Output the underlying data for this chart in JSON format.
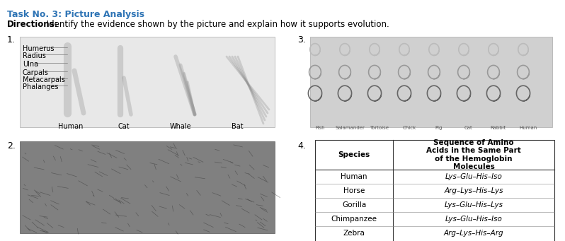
{
  "title": "Task No. 3: Picture Analysis",
  "title_color": "#2E74B5",
  "directions": "Directions: Identify the evidence shown by the picture and explain how it supports evolution.",
  "bg_color": "#ffffff",
  "section1_label": "1.",
  "section2_label": "2.",
  "section3_label": "3.",
  "section4_label": "4.",
  "bone_labels": [
    "Humerus",
    "Radius",
    "Ulna",
    "Carpals",
    "Metacarpals",
    "Phalanges"
  ],
  "animal_labels": [
    "Human",
    "Cat",
    "Whale",
    "Bat"
  ],
  "table_header_col1": "Species",
  "table_header_col2": "Sequence of Amino\nAcids in the Same Part\nof the Hemoglobin\nMolecules",
  "table_rows": [
    [
      "Human",
      "Lys–Glu–His–Iso"
    ],
    [
      "Horse",
      "Arg–Lys–His–Lys"
    ],
    [
      "Gorilla",
      "Lys–Glu–His–Lys"
    ],
    [
      "Chimpanzee",
      "Lys–Glu–His–Iso"
    ],
    [
      "Zebra",
      "Arg–Lys–His–Arg"
    ]
  ],
  "img1_placeholder_color": "#e8e8e8",
  "img2_placeholder_color": "#808080",
  "img3_placeholder_color": "#d0d0d0",
  "title_fontsize": 9,
  "directions_fontsize": 8.5,
  "label_fontsize": 9,
  "bone_fontsize": 7,
  "animal_fontsize": 7,
  "table_fontsize": 7.5
}
